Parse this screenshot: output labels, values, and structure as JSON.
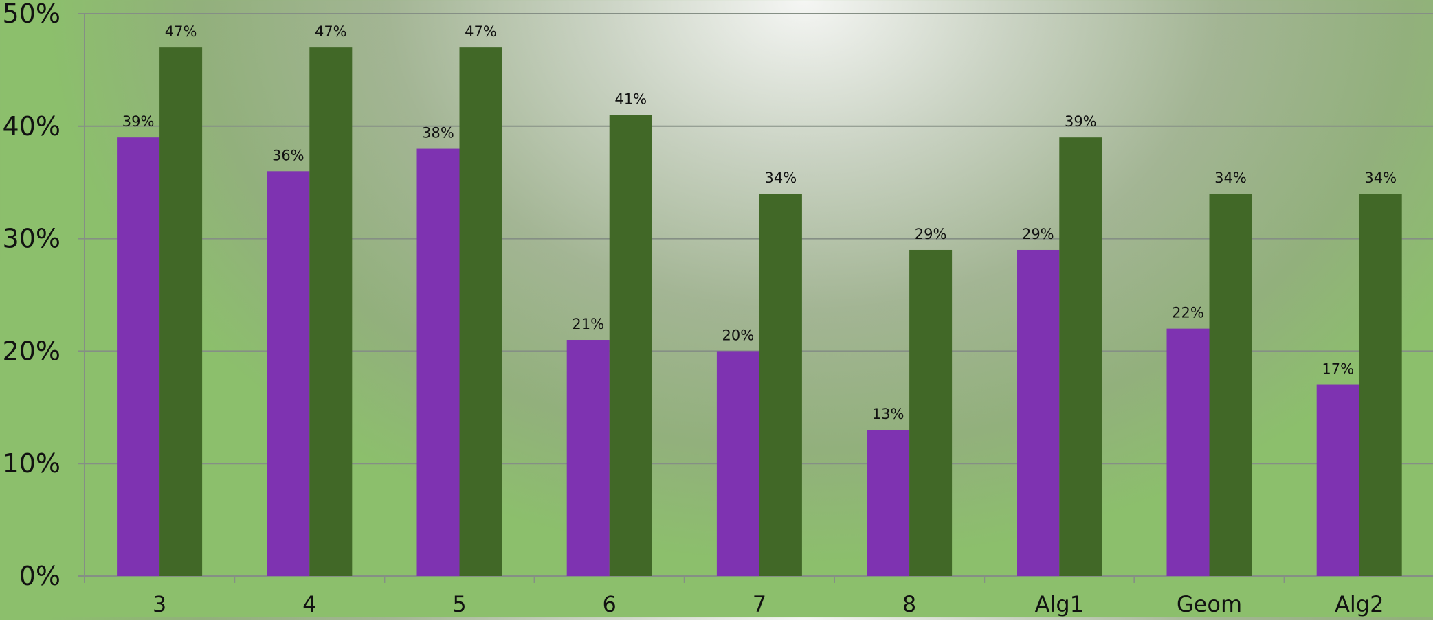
{
  "chart_data": {
    "type": "bar",
    "categories": [
      "3",
      "4",
      "5",
      "6",
      "7",
      "8",
      "Alg1",
      "Geom",
      "Alg2"
    ],
    "series": [
      {
        "values": [
          39,
          36,
          38,
          21,
          20,
          13,
          29,
          22,
          17
        ],
        "color": "#7e33b1"
      },
      {
        "values": [
          47,
          47,
          47,
          41,
          34,
          29,
          39,
          34,
          34
        ],
        "color": "#416827"
      }
    ],
    "data_labels": [
      [
        "39%",
        "36%",
        "38%",
        "21%",
        "20%",
        "13%",
        "29%",
        "22%",
        "17%"
      ],
      [
        "47%",
        "47%",
        "47%",
        "41%",
        "34%",
        "29%",
        "39%",
        "34%",
        "34%"
      ]
    ],
    "y_ticks": [
      "0%",
      "10%",
      "20%",
      "30%",
      "40%",
      "50%"
    ],
    "ylim": [
      0,
      50
    ],
    "grid": true,
    "legend": "none",
    "title": "",
    "xlabel": "",
    "ylabel": ""
  }
}
